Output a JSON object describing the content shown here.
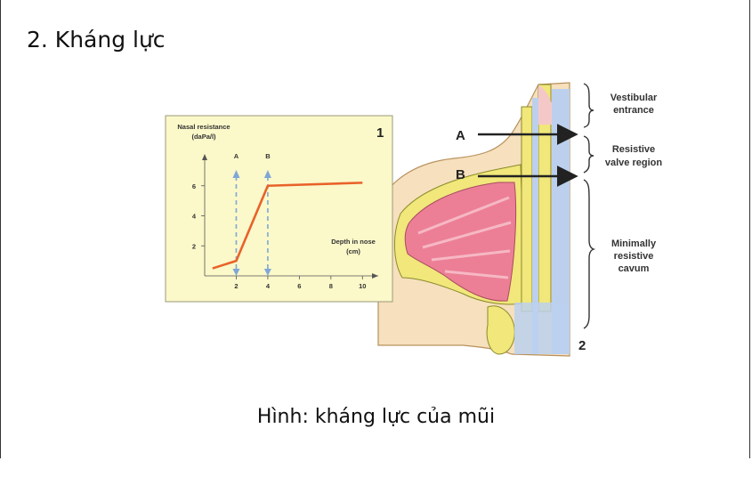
{
  "page": {
    "heading": "2. Kháng lực",
    "caption": "Hình: kháng lực của mũi"
  },
  "figure": {
    "panel_number_1": "1",
    "panel_number_2": "2",
    "arrow_label_a": "A",
    "arrow_label_b": "B",
    "region_labels": {
      "vestibular_1": "Vestibular",
      "vestibular_2": "entrance",
      "resistive_1": "Resistive",
      "resistive_2": "valve region",
      "minimally_1": "Minimally",
      "minimally_2": "resistive",
      "minimally_3": "cavum"
    }
  },
  "chart_data": {
    "type": "line",
    "ylabel_line1": "Nasal resistance",
    "ylabel_line2": "(daPa/l)",
    "xlabel_line1": "Depth in nose",
    "xlabel_line2": "(cm)",
    "xlim": [
      0,
      11
    ],
    "ylim": [
      0,
      8
    ],
    "x_ticks": [
      2,
      4,
      6,
      8,
      10
    ],
    "y_ticks": [
      2,
      4,
      6
    ],
    "series": [
      {
        "x": [
          0.5,
          2,
          4,
          10
        ],
        "y": [
          0.5,
          1,
          6,
          6.2
        ]
      }
    ],
    "markers": [
      {
        "label": "A",
        "x": 2
      },
      {
        "label": "B",
        "x": 4
      }
    ],
    "colors": {
      "line": "#e8622a",
      "marker": "#7fa7d6",
      "panel_bg": "#fbf8c9"
    }
  }
}
